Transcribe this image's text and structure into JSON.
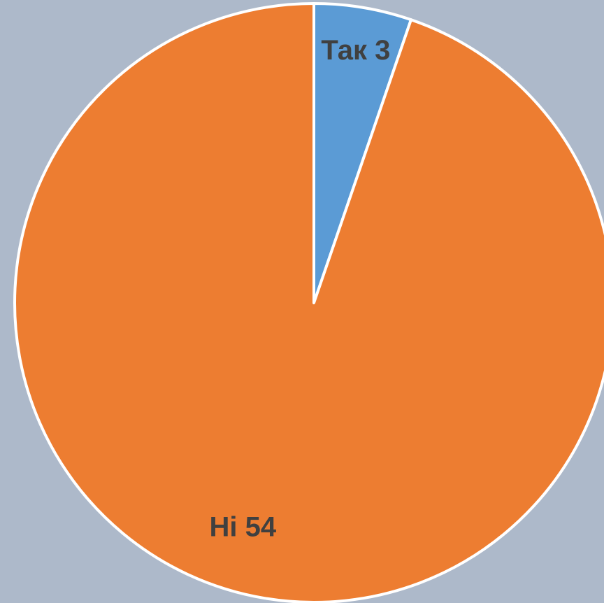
{
  "chart_data": {
    "type": "pie",
    "categories": [
      "Так",
      "Ні"
    ],
    "values": [
      3,
      54
    ],
    "colors": [
      "#5b9bd5",
      "#ed7d31"
    ]
  }
}
